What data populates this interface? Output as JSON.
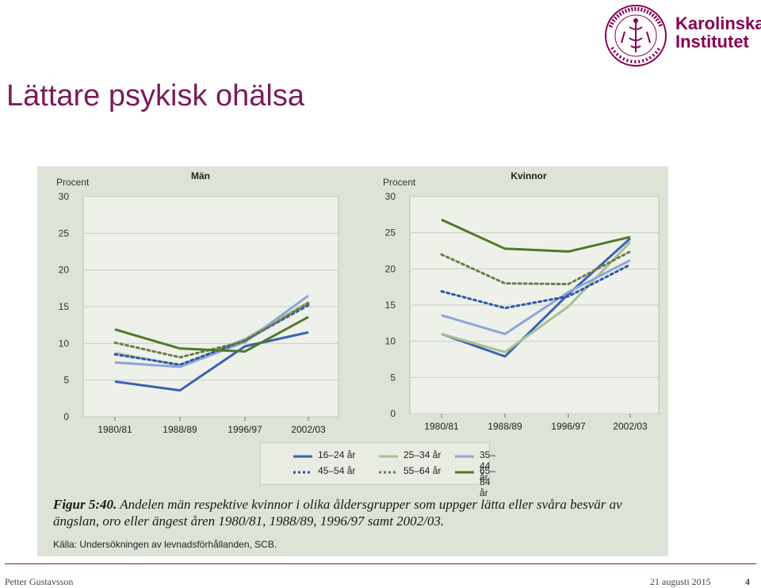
{
  "slide": {
    "title": "Lättare psykisk ohälsa",
    "logo_text_line1": "Karolinska",
    "logo_text_line2": "Institutet",
    "seal_text": "KAROLINSKA INSTITUTET ANNO 1810",
    "footer_author": "Petter Gustavsson",
    "footer_date": "21 augusti 2015",
    "footer_page": "4",
    "brand_color": "#870052"
  },
  "figure": {
    "caption_prefix": "Figur 5:40.",
    "caption_text": "Andelen män respektive kvinnor i olika åldersgrupper som uppger lätta eller svåra besvär av ängslan, oro eller ängest åren 1980/81, 1988/89, 1996/97 samt 2002/03.",
    "source": "Källa: Undersökningen av levnadsförhållanden, SCB."
  },
  "chart_data": [
    {
      "type": "line",
      "title": "Män",
      "ylabel": "Procent",
      "ylim": [
        0,
        30
      ],
      "yticks": [
        0,
        5,
        10,
        15,
        20,
        25,
        30
      ],
      "categories": [
        "1980/81",
        "1988/89",
        "1996/97",
        "2002/03"
      ],
      "series": [
        {
          "name": "16–24 år",
          "values": [
            4.8,
            3.6,
            9.6,
            11.5
          ],
          "color": "#3a62b0",
          "dash": "solid"
        },
        {
          "name": "25–34 år",
          "values": [
            8.7,
            7.0,
            10.6,
            15.6
          ],
          "color": "#a8bf96",
          "dash": "solid"
        },
        {
          "name": "35–44 år",
          "values": [
            7.4,
            6.8,
            10.2,
            16.5
          ],
          "color": "#8ea6d4",
          "dash": "solid"
        },
        {
          "name": "45–54 år",
          "values": [
            8.5,
            7.1,
            10.4,
            15.2
          ],
          "color": "#2f55b0",
          "dash": "dotted"
        },
        {
          "name": "55–64 år",
          "values": [
            10.1,
            8.1,
            10.3,
            15.5
          ],
          "color": "#6a7d45",
          "dash": "dotted"
        },
        {
          "name": "65–84 år",
          "values": [
            11.9,
            9.3,
            8.9,
            13.6
          ],
          "color": "#4f7a2a",
          "dash": "solid"
        }
      ]
    },
    {
      "type": "line",
      "title": "Kvinnor",
      "ylabel": "Procent",
      "ylim": [
        0,
        30
      ],
      "yticks": [
        0,
        5,
        10,
        15,
        20,
        25,
        30
      ],
      "categories": [
        "1980/81",
        "1988/89",
        "1996/97",
        "2002/03"
      ],
      "series": [
        {
          "name": "16–24 år",
          "values": [
            11.0,
            7.9,
            16.5,
            24.2
          ],
          "color": "#3a62b0",
          "dash": "solid"
        },
        {
          "name": "25–34 år",
          "values": [
            11.0,
            8.5,
            14.8,
            23.7
          ],
          "color": "#a8bf96",
          "dash": "solid"
        },
        {
          "name": "35–44 år",
          "values": [
            13.6,
            11.0,
            16.8,
            21.2
          ],
          "color": "#8ea6d4",
          "dash": "solid"
        },
        {
          "name": "45–54 år",
          "values": [
            16.9,
            14.6,
            16.2,
            20.6
          ],
          "color": "#2f55b0",
          "dash": "dotted"
        },
        {
          "name": "55–64 år",
          "values": [
            22.0,
            18.0,
            17.9,
            22.4
          ],
          "color": "#6a7d45",
          "dash": "dotted"
        },
        {
          "name": "65–84 år",
          "values": [
            26.8,
            22.8,
            22.4,
            24.4
          ],
          "color": "#4f7a2a",
          "dash": "solid"
        }
      ]
    }
  ]
}
